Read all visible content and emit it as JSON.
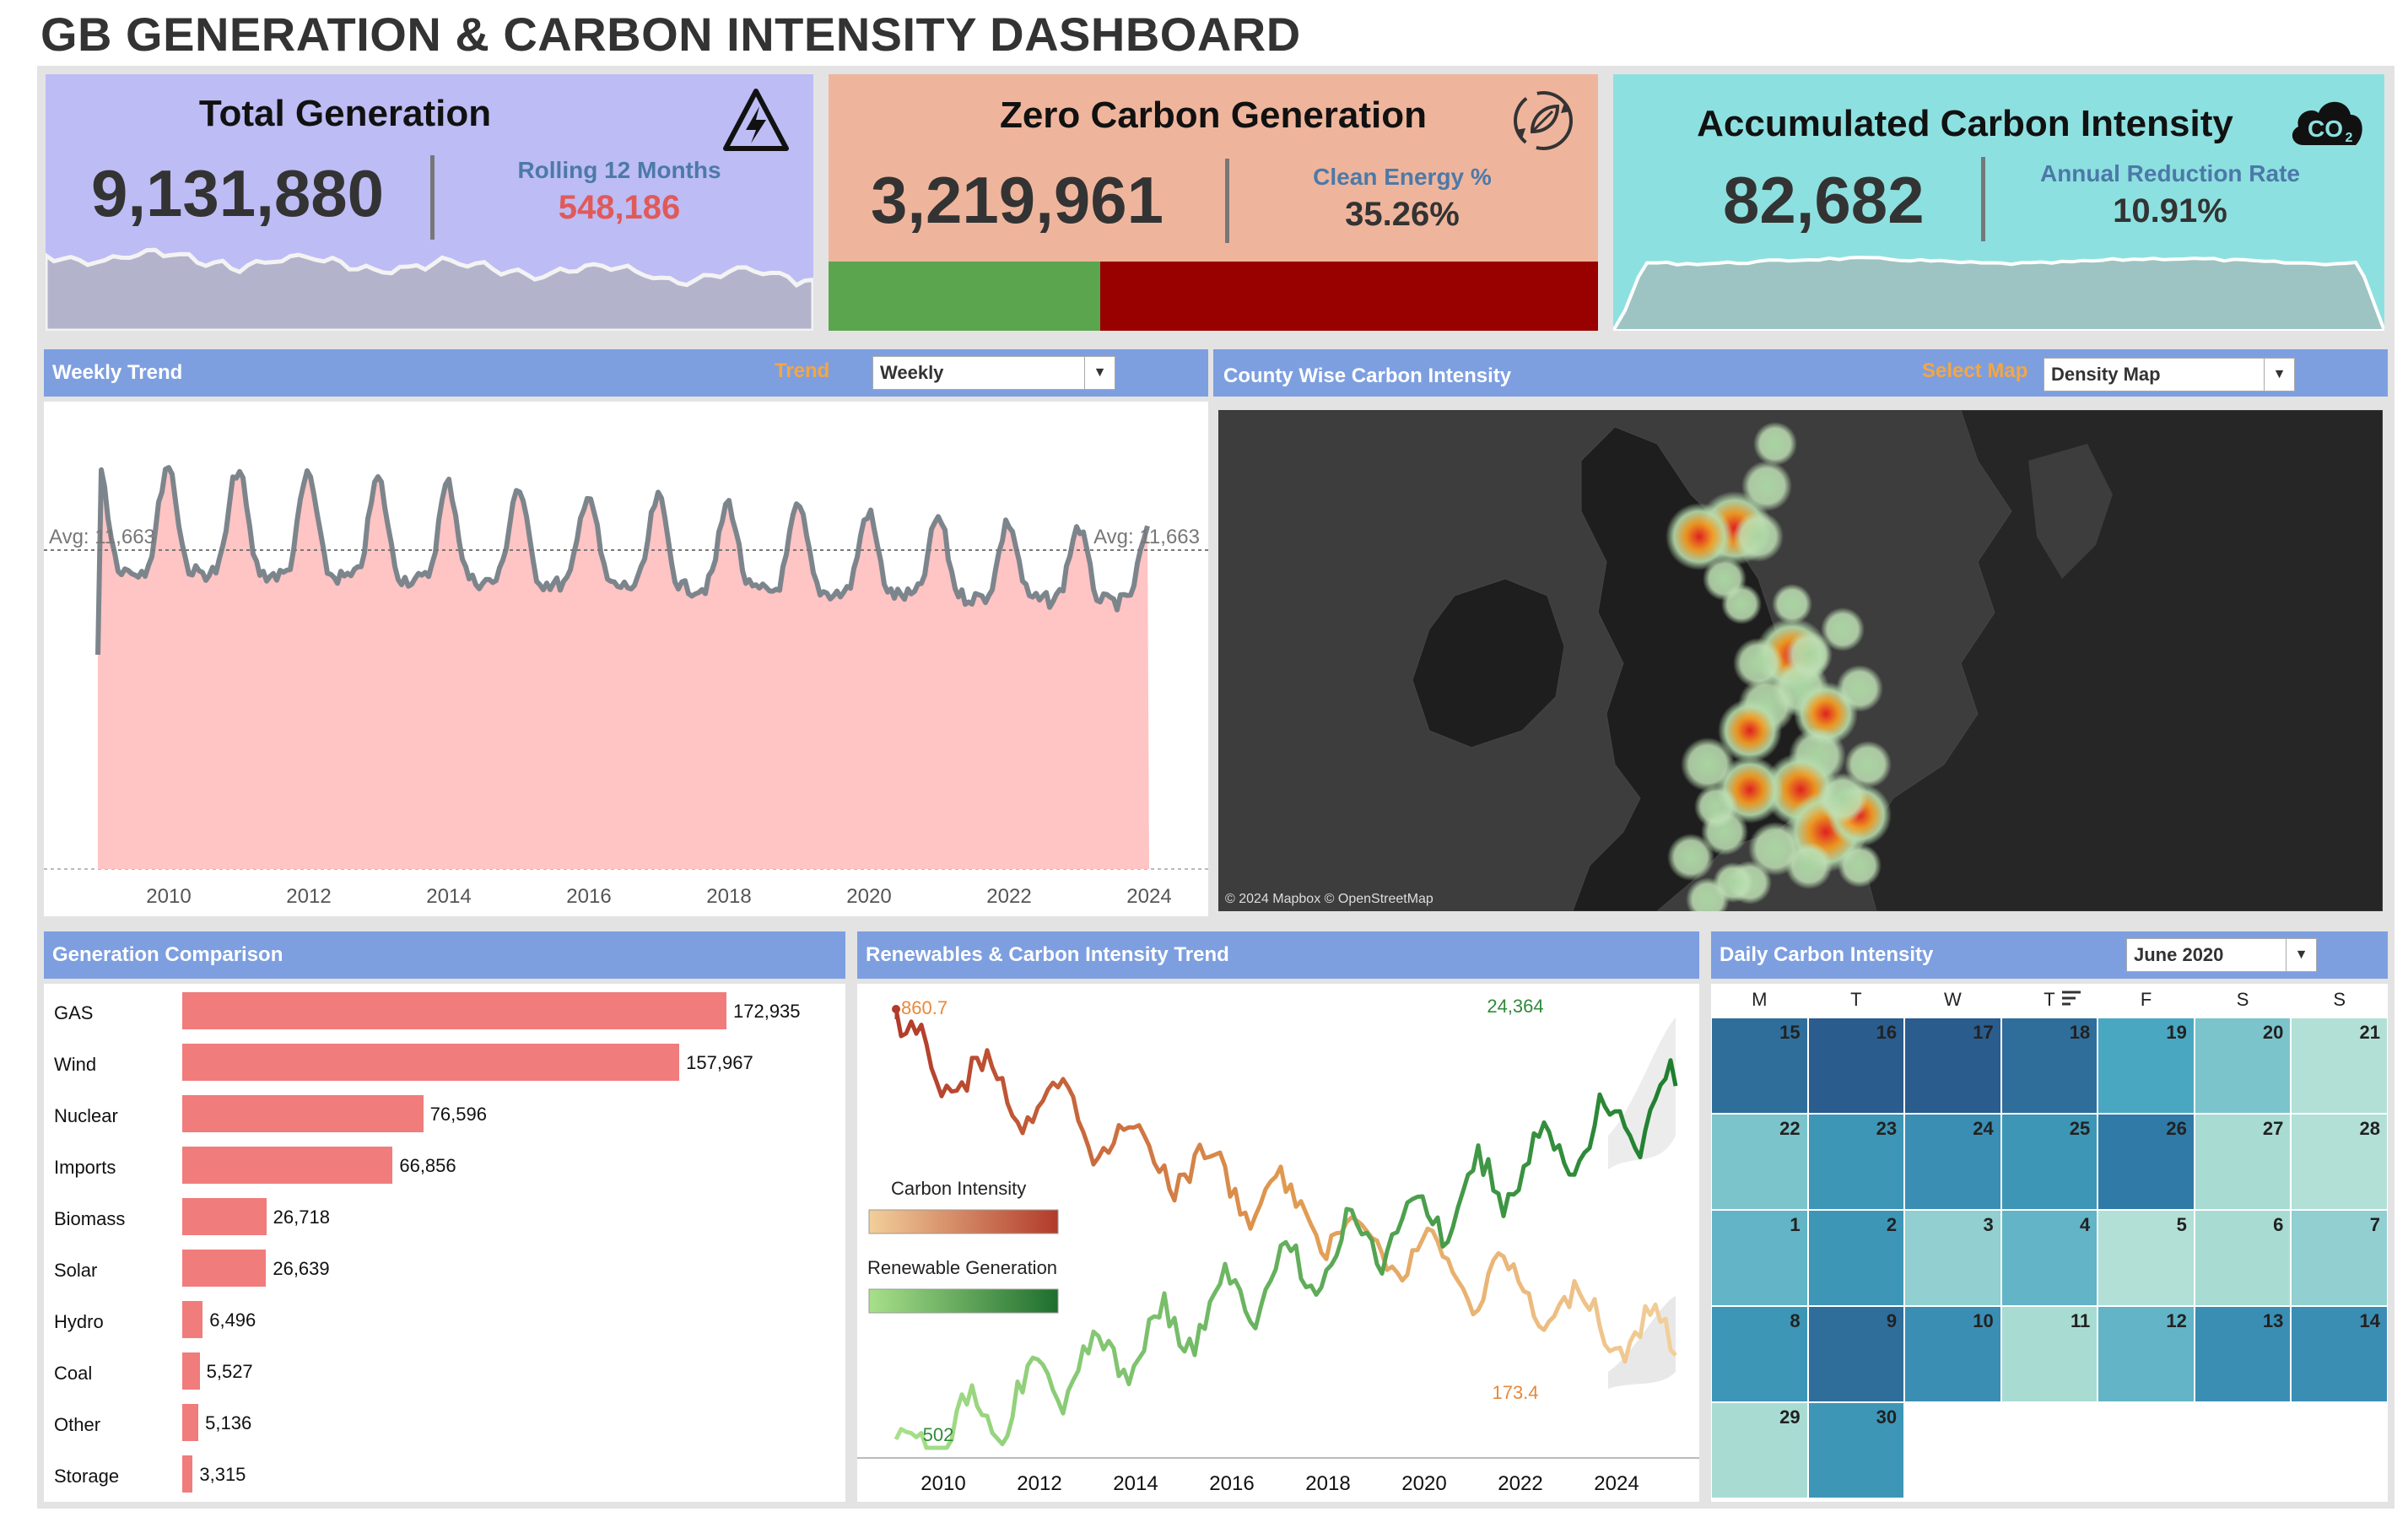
{
  "title": "GB GENERATION & CARBON INTENSITY DASHBOARD",
  "kpis": {
    "total": {
      "title": "Total Generation",
      "value": "9,131,880",
      "sub_label": "Rolling 12 Months",
      "sub_value": "548,186",
      "icon": "lightning-icon",
      "bg": "#bdbcf5"
    },
    "zero": {
      "title": "Zero Carbon Generation",
      "value": "3,219,961",
      "sub_label": "Clean Energy %",
      "sub_value": "35.26%",
      "icon": "recycle-leaf-icon",
      "bg": "#efb59c",
      "clean_fraction": 0.3526,
      "clean_color": "#5aa54e",
      "other_color": "#990000"
    },
    "accum": {
      "title": "Accumulated Carbon Intensity",
      "value": "82,682",
      "sub_label": "Annual Reduction Rate",
      "sub_value": "10.91%",
      "icon": "co2-cloud-icon",
      "bg": "#8de0e0"
    }
  },
  "weekly": {
    "title": "Weekly Trend",
    "control_label": "Trend",
    "dropdown_value": "Weekly",
    "avg_label_left": "Avg: 11,663",
    "avg_label_right": "Avg: 11,663",
    "x_ticks": [
      "2010",
      "2012",
      "2014",
      "2016",
      "2018",
      "2020",
      "2022",
      "2024"
    ]
  },
  "map": {
    "title": "County Wise Carbon Intensity",
    "control_label": "Select Map",
    "dropdown_value": "Density Map",
    "attribution": "© 2024 Mapbox © OpenStreetMap"
  },
  "generation": {
    "title": "Generation Comparison",
    "color": "#f07c7c"
  },
  "renewables": {
    "title": "Renewables & Carbon Intensity Trend",
    "legend_carbon": "Carbon Intensity",
    "legend_renew": "Renewable Generation",
    "label_ci_max": "860.7",
    "label_ci_min": "173.4",
    "label_re_max": "24,364",
    "label_re_min": "502",
    "x_ticks": [
      "2010",
      "2012",
      "2014",
      "2016",
      "2018",
      "2020",
      "2022",
      "2024"
    ]
  },
  "calendar": {
    "title": "Daily Carbon Intensity",
    "dropdown_value": "June 2020",
    "weekdays": [
      "M",
      "T",
      "W",
      "T",
      "F",
      "S",
      "S"
    ]
  },
  "chart_data": [
    {
      "type": "bar",
      "title": "Generation Comparison",
      "categories": [
        "GAS",
        "Wind",
        "Nuclear",
        "Imports",
        "Biomass",
        "Solar",
        "Hydro",
        "Coal",
        "Other",
        "Storage"
      ],
      "values": [
        172935,
        157967,
        76596,
        66856,
        26718,
        26639,
        6496,
        5527,
        5136,
        3315
      ],
      "labels": [
        "172,935",
        "157,967",
        "76,596",
        "66,856",
        "26,718",
        "26,639",
        "6,496",
        "5,527",
        "5,136",
        "3,315"
      ]
    },
    {
      "type": "heatmap",
      "title": "Daily Carbon Intensity",
      "rows": [
        [
          {
            "d": "15",
            "c": "#2f6e9b"
          },
          {
            "d": "16",
            "c": "#2a5c8e"
          },
          {
            "d": "17",
            "c": "#2a5c8e"
          },
          {
            "d": "18",
            "c": "#2f6e9b"
          },
          {
            "d": "19",
            "c": "#49a7c1"
          },
          {
            "d": "20",
            "c": "#7cc4cb"
          },
          {
            "d": "21",
            "c": "#b2e0d6"
          }
        ],
        [
          {
            "d": "22",
            "c": "#7cc4cb"
          },
          {
            "d": "23",
            "c": "#3d96b6"
          },
          {
            "d": "24",
            "c": "#3a8eb4"
          },
          {
            "d": "25",
            "c": "#3d96b6"
          },
          {
            "d": "26",
            "c": "#2f7aa6"
          },
          {
            "d": "27",
            "c": "#a8dcd3"
          },
          {
            "d": "28",
            "c": "#b2e0d6"
          }
        ],
        [
          {
            "d": "1",
            "c": "#62b4c6"
          },
          {
            "d": "2",
            "c": "#3d96b6"
          },
          {
            "d": "3",
            "c": "#91cfd0"
          },
          {
            "d": "4",
            "c": "#62b4c6"
          },
          {
            "d": "5",
            "c": "#b2e0d6"
          },
          {
            "d": "6",
            "c": "#a8dcd3"
          },
          {
            "d": "7",
            "c": "#91cfd0"
          }
        ],
        [
          {
            "d": "8",
            "c": "#3d96b6"
          },
          {
            "d": "9",
            "c": "#2f6e9b"
          },
          {
            "d": "10",
            "c": "#3a8eb4"
          },
          {
            "d": "11",
            "c": "#a8dcd3"
          },
          {
            "d": "12",
            "c": "#62b4c6"
          },
          {
            "d": "13",
            "c": "#3a8eb4"
          },
          {
            "d": "14",
            "c": "#3a8eb4"
          }
        ],
        [
          {
            "d": "29",
            "c": "#a8dcd3"
          },
          {
            "d": "30",
            "c": "#3d96b6"
          }
        ]
      ]
    }
  ]
}
